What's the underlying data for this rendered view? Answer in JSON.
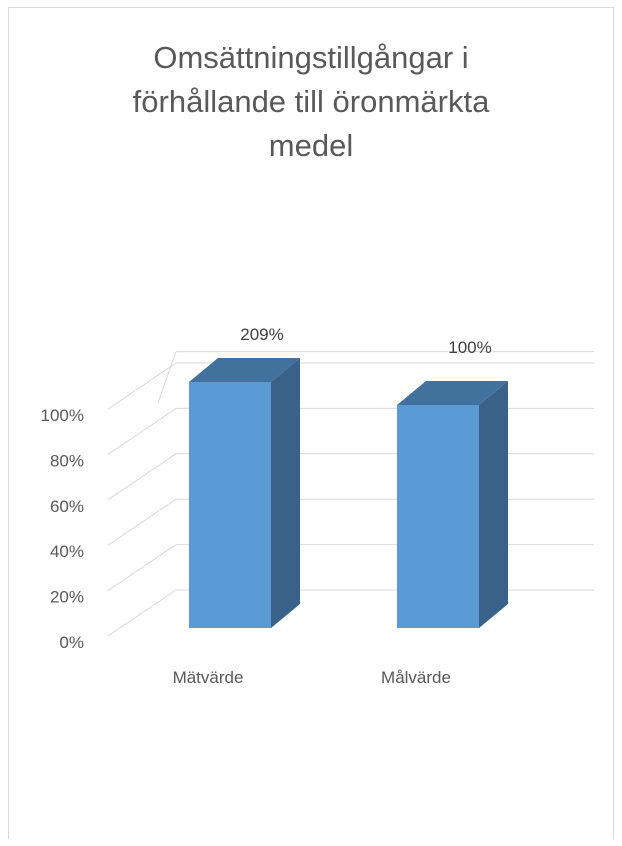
{
  "chart_data": {
    "type": "bar",
    "title": "Omsättningstillgångar i\nförhållande till öronmärkta\nmedel",
    "categories": [
      "Mätvärde",
      "Målvärde"
    ],
    "series": [
      {
        "values": [
          209,
          100
        ],
        "data_labels": [
          "209%",
          "100%"
        ],
        "color": "#5b9bd5"
      }
    ],
    "yticks": [
      0,
      20,
      40,
      60,
      80,
      100
    ],
    "ytick_labels": [
      "0%",
      "20%",
      "40%",
      "60%",
      "80%",
      "100%"
    ],
    "ylim": [
      0,
      100
    ],
    "clipped_above_max": true,
    "grid": true,
    "legend": "none",
    "style": "3d-column"
  }
}
